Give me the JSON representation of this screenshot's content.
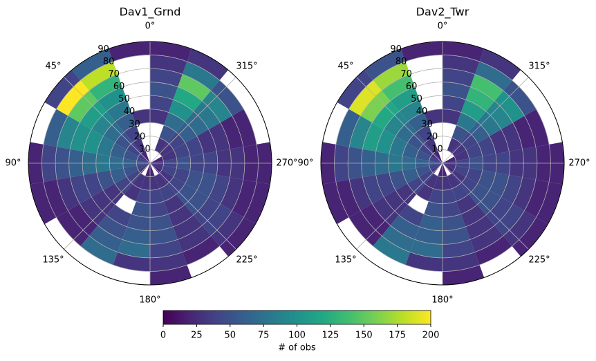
{
  "chart_data": [
    {
      "type": "polar_heatmap",
      "title": "Dav1_Grnd",
      "theta_bins": [
        0,
        20,
        40,
        60,
        80,
        100,
        120,
        140,
        160,
        180,
        200,
        220,
        240,
        260,
        280,
        300,
        320,
        340,
        360
      ],
      "r_bins": [
        0,
        10,
        20,
        30,
        40,
        50,
        60,
        70,
        80,
        90
      ],
      "values": [
        [
          null,
          null,
          null,
          30,
          null,
          null,
          null,
          null,
          20
        ],
        [
          20,
          30,
          40,
          60,
          80,
          100,
          130,
          180,
          60
        ],
        [
          30,
          40,
          50,
          70,
          90,
          110,
          150,
          200,
          40
        ],
        [
          40,
          50,
          60,
          80,
          100,
          100,
          90,
          60,
          null
        ],
        [
          50,
          60,
          70,
          80,
          70,
          60,
          50,
          40,
          20
        ],
        [
          40,
          50,
          60,
          50,
          40,
          40,
          30,
          20,
          20
        ],
        [
          30,
          40,
          40,
          30,
          30,
          30,
          20,
          20,
          null
        ],
        [
          null,
          30,
          30,
          null,
          40,
          50,
          60,
          70,
          null
        ],
        [
          20,
          30,
          40,
          50,
          50,
          60,
          70,
          30,
          null
        ],
        [
          20,
          30,
          40,
          40,
          50,
          50,
          40,
          30,
          20
        ],
        [
          null,
          30,
          40,
          30,
          30,
          30,
          30,
          20,
          null
        ],
        [
          20,
          30,
          40,
          50,
          50,
          40,
          40,
          30,
          20
        ],
        [
          30,
          40,
          40,
          50,
          50,
          40,
          30,
          20,
          20
        ],
        [
          30,
          40,
          50,
          40,
          40,
          30,
          30,
          20,
          20
        ],
        [
          20,
          30,
          40,
          40,
          30,
          30,
          20,
          20,
          null
        ],
        [
          null,
          30,
          40,
          60,
          70,
          80,
          90,
          50,
          null
        ],
        [
          null,
          30,
          50,
          70,
          100,
          120,
          150,
          80,
          30
        ],
        [
          null,
          null,
          null,
          30,
          40,
          50,
          40,
          30,
          20
        ]
      ],
      "rlim": [
        0,
        90
      ],
      "rticks": [
        10,
        20,
        30,
        40,
        50,
        60,
        70,
        80,
        90
      ],
      "thetaticks": [
        {
          "value": 0,
          "label": "0°"
        },
        {
          "value": 45,
          "label": "45°"
        },
        {
          "value": 90,
          "label": "90°"
        },
        {
          "value": 135,
          "label": "135°"
        },
        {
          "value": 180,
          "label": "180°"
        },
        {
          "value": 225,
          "label": "225°"
        },
        {
          "value": 270,
          "label": "270°"
        },
        {
          "value": 315,
          "label": "315°"
        }
      ]
    },
    {
      "type": "polar_heatmap",
      "title": "Dav2_Twr",
      "theta_bins": [
        0,
        20,
        40,
        60,
        80,
        100,
        120,
        140,
        160,
        180,
        200,
        220,
        240,
        260,
        280,
        300,
        320,
        340,
        360
      ],
      "r_bins": [
        0,
        10,
        20,
        30,
        40,
        50,
        60,
        70,
        80,
        90
      ],
      "values": [
        [
          null,
          null,
          null,
          30,
          null,
          null,
          null,
          null,
          20
        ],
        [
          20,
          30,
          40,
          60,
          90,
          110,
          140,
          170,
          50
        ],
        [
          30,
          40,
          50,
          70,
          90,
          120,
          160,
          190,
          40
        ],
        [
          40,
          50,
          60,
          80,
          100,
          110,
          90,
          60,
          null
        ],
        [
          50,
          60,
          70,
          80,
          70,
          60,
          50,
          40,
          20
        ],
        [
          40,
          50,
          60,
          50,
          40,
          40,
          30,
          20,
          20
        ],
        [
          30,
          40,
          40,
          30,
          30,
          30,
          20,
          20,
          null
        ],
        [
          null,
          30,
          30,
          null,
          40,
          60,
          70,
          80,
          null
        ],
        [
          20,
          30,
          40,
          50,
          60,
          60,
          70,
          30,
          null
        ],
        [
          20,
          30,
          40,
          40,
          50,
          50,
          40,
          30,
          20
        ],
        [
          null,
          30,
          40,
          30,
          30,
          30,
          30,
          20,
          null
        ],
        [
          20,
          30,
          40,
          50,
          50,
          40,
          40,
          30,
          20
        ],
        [
          30,
          40,
          40,
          50,
          50,
          40,
          30,
          20,
          20
        ],
        [
          30,
          40,
          50,
          40,
          40,
          30,
          30,
          20,
          20
        ],
        [
          20,
          30,
          40,
          40,
          30,
          30,
          20,
          20,
          null
        ],
        [
          null,
          30,
          40,
          60,
          80,
          90,
          100,
          50,
          null
        ],
        [
          null,
          30,
          50,
          80,
          110,
          130,
          140,
          70,
          30
        ],
        [
          null,
          null,
          null,
          30,
          40,
          50,
          40,
          30,
          20
        ]
      ],
      "rlim": [
        0,
        90
      ],
      "rticks": [
        10,
        20,
        30,
        40,
        50,
        60,
        70,
        80,
        90
      ],
      "thetaticks": [
        {
          "value": 0,
          "label": "0°"
        },
        {
          "value": 45,
          "label": "45°"
        },
        {
          "value": 90,
          "label": "90°"
        },
        {
          "value": 135,
          "label": "135°"
        },
        {
          "value": 180,
          "label": "180°"
        },
        {
          "value": 225,
          "label": "225°"
        },
        {
          "value": 270,
          "label": "270°"
        },
        {
          "value": 315,
          "label": "315°"
        }
      ]
    }
  ],
  "colorbar": {
    "label": "# of obs",
    "lim": [
      0,
      200
    ],
    "ticks": [
      0,
      25,
      50,
      75,
      100,
      125,
      150,
      175,
      200
    ],
    "colormap": "viridis"
  }
}
